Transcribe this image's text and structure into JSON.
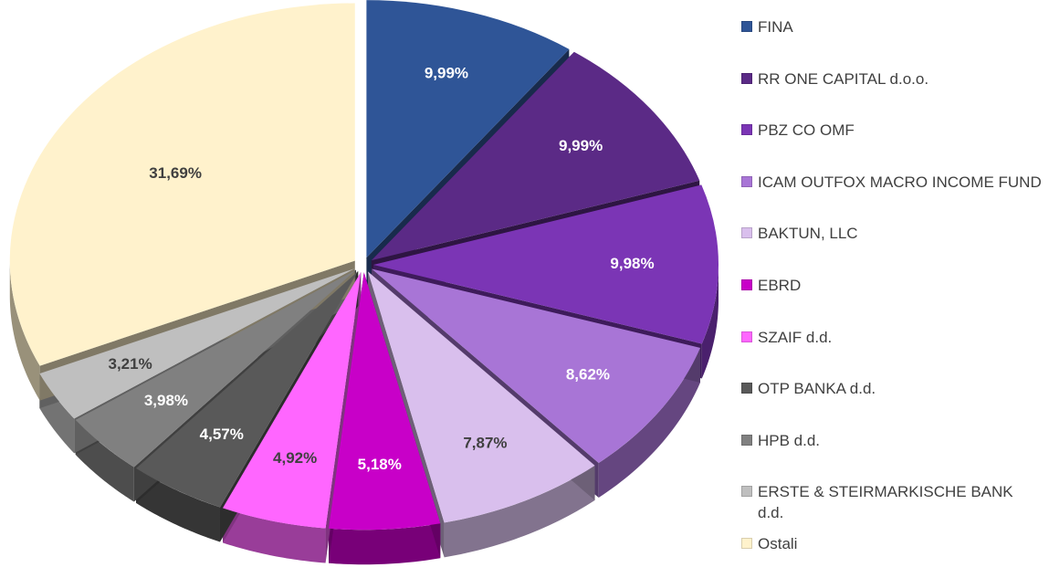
{
  "chart_data": {
    "type": "pie",
    "categories": [
      "FINA",
      "RR ONE CAPITAL d.o.o.",
      "PBZ CO OMF",
      "ICAM OUTFOX MACRO INCOME FUND",
      "BAKTUN, LLC",
      "EBRD",
      "SZAIF d.d.",
      "OTP BANKA d.d.",
      "HPB d.d.",
      "ERSTE & STEIRMARKISCHE BANK d.d.",
      "Ostali"
    ],
    "values": [
      9.99,
      9.99,
      9.98,
      8.62,
      7.87,
      5.18,
      4.92,
      4.57,
      3.98,
      3.21,
      31.69
    ],
    "value_labels": [
      "9,99%",
      "9,99%",
      "9,98%",
      "8,62%",
      "7,87%",
      "5,18%",
      "4,92%",
      "4,57%",
      "3,98%",
      "3,21%",
      "31,69%"
    ],
    "colors": [
      "#2f5597",
      "#5b2a86",
      "#7b35b5",
      "#a875d6",
      "#d9bfed",
      "#c800c8",
      "#ff66ff",
      "#595959",
      "#808080",
      "#bfbfbf",
      "#fff2cc"
    ],
    "legend": "right"
  }
}
